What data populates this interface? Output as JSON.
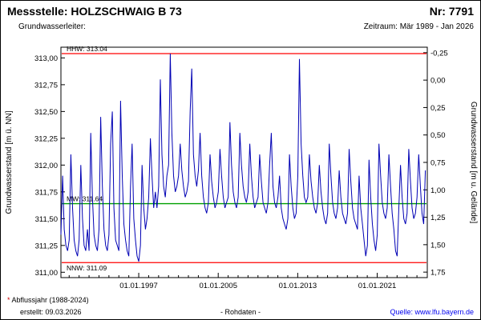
{
  "header": {
    "station_label": "Messstelle: HOLZSCHWAIG B 73",
    "number_label": "Nr: 7791",
    "aquifer_label": "Grundwasserleiter:",
    "period_label": "Zeitraum: Mär 1989 - Jan 2026"
  },
  "footer": {
    "note_star": "*",
    "note_text": " Abflussjahr (1988-2024)",
    "created_label": "erstellt:  09.03.2026",
    "center_label": "- Rohdaten -",
    "source_label": "Quelle: www.lfu.bayern.de"
  },
  "colors": {
    "series_blue": "#0000b4",
    "limit_red": "#ff0000",
    "mean_green": "#00a000",
    "link_blue": "#0000ee"
  },
  "chart_data": {
    "type": "line",
    "title": "",
    "ylabel_left": "Grundwasserstand [m ü. NN]",
    "ylabel_right": "Grundwasserstand [m u. Gelände]",
    "x": {
      "min": 1989.17,
      "max": 2026.04,
      "ticks": [
        1997,
        2005,
        2013,
        2021
      ],
      "tick_labels": [
        "01.01.1997",
        "01.01.2005",
        "01.01.2013",
        "01.01.2021"
      ],
      "minor_tick_start": 1990,
      "minor_tick_end": 2025
    },
    "y_left": {
      "min": 310.95,
      "max": 313.1,
      "ticks": [
        311.0,
        311.25,
        311.5,
        311.75,
        312.0,
        312.25,
        312.5,
        312.75,
        313.0
      ]
    },
    "y_right": {
      "min": -0.3,
      "max": 1.8,
      "ticks": [
        -0.25,
        0.0,
        0.25,
        0.5,
        0.75,
        1.0,
        1.25,
        1.5,
        1.75
      ]
    },
    "reference_lines": [
      {
        "name": "HHW",
        "label": "HHW: 313.04",
        "value": 313.04,
        "color": "#ff0000",
        "label_pos": "above"
      },
      {
        "name": "MW",
        "label": "MW: 311.64",
        "value": 311.64,
        "color": "#00a000",
        "label_pos": "above"
      },
      {
        "name": "NNW",
        "label": "NNW: 311.09",
        "value": 311.09,
        "color": "#ff0000",
        "label_pos": "below"
      }
    ],
    "series": [
      {
        "name": "Rohdaten",
        "color": "#0000b4",
        "x_start": 1989.17,
        "x_step_years": 0.1667,
        "values": [
          311.35,
          311.9,
          311.4,
          311.25,
          311.2,
          311.3,
          312.1,
          311.6,
          311.3,
          311.2,
          311.15,
          311.3,
          312.0,
          311.5,
          311.25,
          311.2,
          311.4,
          311.2,
          312.3,
          311.7,
          311.35,
          311.25,
          311.2,
          311.4,
          312.45,
          311.8,
          311.4,
          311.25,
          311.2,
          311.35,
          312.2,
          312.5,
          311.6,
          311.3,
          311.25,
          311.2,
          312.6,
          311.9,
          311.45,
          311.3,
          311.2,
          311.15,
          311.8,
          312.2,
          311.5,
          311.3,
          311.15,
          311.1,
          311.25,
          312.0,
          311.6,
          311.4,
          311.5,
          311.7,
          312.25,
          311.9,
          311.6,
          311.75,
          311.6,
          311.8,
          312.8,
          312.1,
          311.8,
          311.7,
          311.9,
          312.0,
          313.04,
          312.3,
          311.9,
          311.75,
          311.8,
          311.9,
          312.2,
          311.95,
          311.8,
          311.7,
          311.75,
          311.85,
          312.5,
          312.9,
          312.1,
          311.9,
          311.8,
          311.95,
          312.3,
          311.9,
          311.7,
          311.6,
          311.55,
          311.65,
          312.1,
          311.85,
          311.7,
          311.6,
          311.65,
          311.75,
          312.15,
          311.9,
          311.7,
          311.6,
          311.65,
          311.7,
          312.4,
          312.0,
          311.75,
          311.65,
          311.6,
          311.7,
          312.3,
          312.0,
          311.8,
          311.7,
          311.65,
          311.75,
          312.2,
          311.9,
          311.7,
          311.6,
          311.65,
          311.7,
          312.1,
          311.85,
          311.65,
          311.6,
          311.55,
          311.65,
          312.0,
          312.3,
          311.8,
          311.65,
          311.6,
          311.7,
          311.9,
          311.6,
          311.5,
          311.45,
          311.4,
          311.5,
          312.1,
          311.8,
          311.6,
          311.5,
          311.55,
          311.9,
          312.99,
          312.2,
          311.9,
          311.7,
          311.65,
          311.7,
          312.1,
          311.85,
          311.7,
          311.6,
          311.55,
          311.65,
          312.0,
          311.75,
          311.6,
          311.5,
          311.45,
          311.55,
          312.2,
          311.9,
          311.65,
          311.55,
          311.5,
          311.6,
          311.95,
          311.7,
          311.55,
          311.5,
          311.45,
          311.55,
          312.15,
          311.85,
          311.6,
          311.5,
          311.45,
          311.4,
          311.9,
          311.6,
          311.45,
          311.3,
          311.15,
          311.25,
          312.05,
          311.7,
          311.45,
          311.3,
          311.2,
          311.35,
          312.2,
          311.9,
          311.65,
          311.55,
          311.5,
          311.6,
          312.1,
          311.8,
          311.55,
          311.4,
          311.2,
          311.15,
          311.6,
          312.0,
          311.7,
          311.5,
          311.45,
          311.55,
          312.15,
          311.85,
          311.6,
          311.5,
          311.55,
          311.7,
          312.1,
          311.8,
          311.55,
          311.45,
          311.95
        ]
      }
    ],
    "legend": "none",
    "grid": "off"
  }
}
